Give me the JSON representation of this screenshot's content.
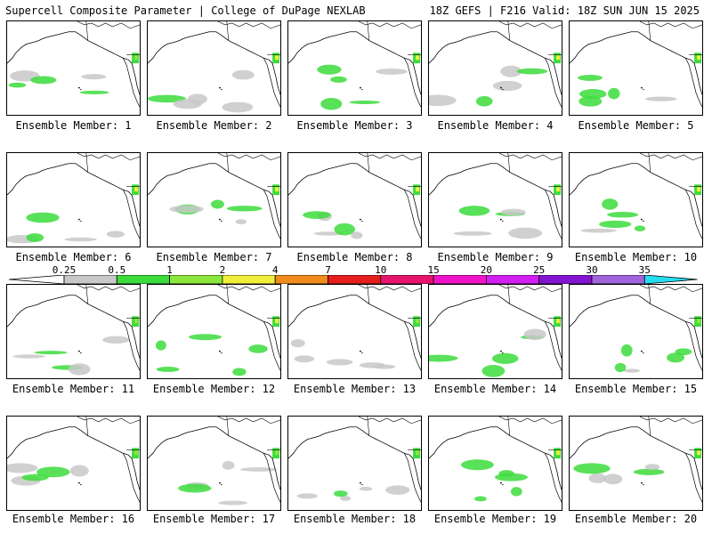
{
  "header": {
    "left_title": "Supercell Composite Parameter | College of DuPage NEXLAB",
    "right_title": "18Z GEFS | F216 Valid: 18Z SUN JUN 15 2025"
  },
  "members": [
    {
      "label": "Ensemble Member: 1"
    },
    {
      "label": "Ensemble Member: 2"
    },
    {
      "label": "Ensemble Member: 3"
    },
    {
      "label": "Ensemble Member: 4"
    },
    {
      "label": "Ensemble Member: 5"
    },
    {
      "label": "Ensemble Member: 6"
    },
    {
      "label": "Ensemble Member: 7"
    },
    {
      "label": "Ensemble Member: 8"
    },
    {
      "label": "Ensemble Member: 9"
    },
    {
      "label": "Ensemble Member: 10"
    },
    {
      "label": "Ensemble Member: 11"
    },
    {
      "label": "Ensemble Member: 12"
    },
    {
      "label": "Ensemble Member: 13"
    },
    {
      "label": "Ensemble Member: 14"
    },
    {
      "label": "Ensemble Member: 15"
    },
    {
      "label": "Ensemble Member: 16"
    },
    {
      "label": "Ensemble Member: 17"
    },
    {
      "label": "Ensemble Member: 18"
    },
    {
      "label": "Ensemble Member: 19"
    },
    {
      "label": "Ensemble Member: 20"
    }
  ],
  "colorbar": {
    "labels": [
      "0.25",
      "0.5",
      "1",
      "2",
      "4",
      "7",
      "10",
      "15",
      "20",
      "25",
      "30",
      "35"
    ],
    "colors": [
      "#c8c8c8",
      "#3cdc3c",
      "#8ce63c",
      "#f0f03c",
      "#f08c1e",
      "#e61e1e",
      "#e6146e",
      "#f014c8",
      "#d21ef0",
      "#8214d2",
      "#a064dc",
      "#28dcf0"
    ]
  }
}
